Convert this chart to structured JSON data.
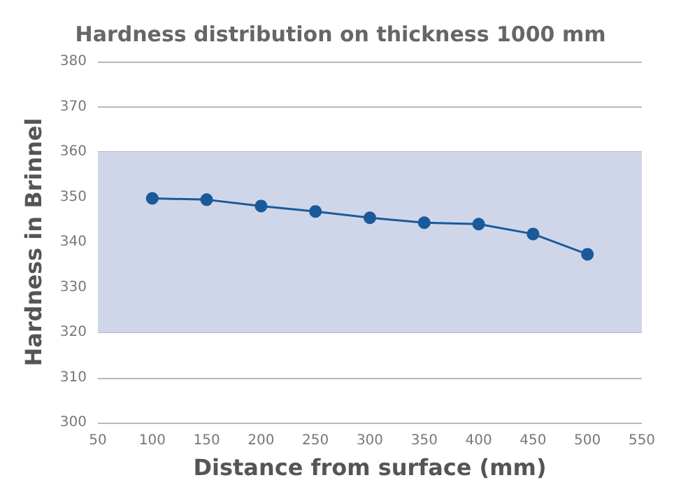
{
  "chart_data": {
    "type": "line",
    "title": "Hardness distribution on thickness 1000 mm",
    "xlabel": "Distance from surface (mm)",
    "ylabel": "Hardness in Brinnel",
    "x": [
      100,
      150,
      200,
      250,
      300,
      350,
      400,
      450,
      500
    ],
    "series": [
      {
        "color": "#1a5a9a",
        "values": [
          349.7,
          349.4,
          348,
          346.8,
          345.4,
          344.3,
          344,
          341.8,
          337.3
        ]
      }
    ],
    "xlim": [
      50,
      550
    ],
    "xticks": [
      50,
      100,
      150,
      200,
      250,
      300,
      350,
      400,
      450,
      500,
      550
    ],
    "ylim": [
      300,
      380
    ],
    "yticks": [
      300,
      310,
      320,
      330,
      340,
      350,
      360,
      370,
      380
    ],
    "bands": [
      {
        "axis": "y",
        "from": 320,
        "to": 360,
        "color": "#d0d6e9"
      }
    ],
    "grid": "y",
    "marker": "circle",
    "line_style": "solid"
  }
}
